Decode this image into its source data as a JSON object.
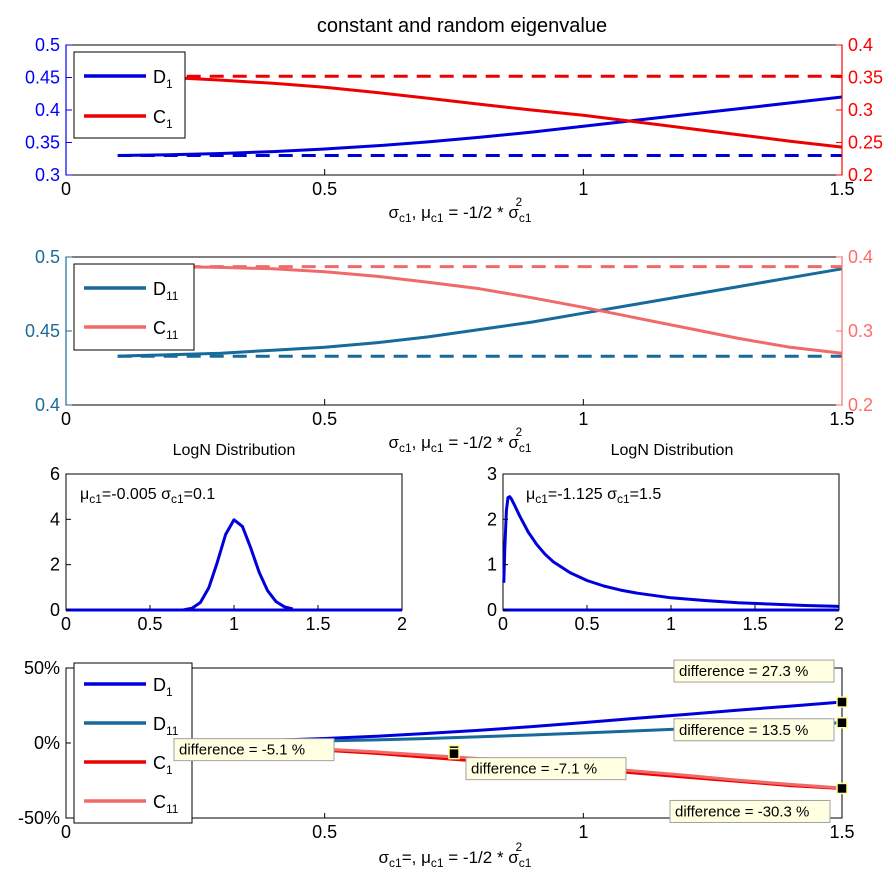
{
  "title": "constant and random eigenvalue",
  "chart_data": [
    {
      "type": "line",
      "id": "p1",
      "xlim": [
        0,
        1.5
      ],
      "xticks": [
        0,
        0.5,
        1,
        1.5
      ],
      "xtick_labels": [
        "0",
        "0.5",
        "1",
        "1.5"
      ],
      "ylim_left": [
        0.3,
        0.5
      ],
      "yticks_left": [
        "0.3",
        "0.35",
        "0.4",
        "0.45",
        "0.5"
      ],
      "ylim_right": [
        0.2,
        0.4
      ],
      "yticks_right": [
        "0.2",
        "0.25",
        "0.3",
        "0.35",
        "0.4"
      ],
      "left_axis_color": "#0000ff",
      "right_axis_color": "#ff0000",
      "xlabel": "σc1, μc1 = -1/2 * σc1²",
      "legend_position": "top-left",
      "series": [
        {
          "name": "D1",
          "axis": "left",
          "color": "#0000dd",
          "dash": false,
          "x": [
            0.1,
            0.2,
            0.3,
            0.4,
            0.5,
            0.6,
            0.7,
            0.8,
            0.9,
            1.0,
            1.1,
            1.2,
            1.3,
            1.4,
            1.5
          ],
          "y": [
            0.33,
            0.331,
            0.333,
            0.336,
            0.34,
            0.345,
            0.351,
            0.358,
            0.366,
            0.375,
            0.384,
            0.393,
            0.402,
            0.411,
            0.42
          ]
        },
        {
          "name": "C1",
          "axis": "right",
          "color": "#ee0000",
          "dash": false,
          "x": [
            0.1,
            0.2,
            0.3,
            0.4,
            0.5,
            0.6,
            0.7,
            0.8,
            0.9,
            1.0,
            1.1,
            1.2,
            1.3,
            1.4,
            1.5
          ],
          "y": [
            0.352,
            0.35,
            0.346,
            0.341,
            0.335,
            0.327,
            0.318,
            0.309,
            0.3,
            0.292,
            0.282,
            0.272,
            0.262,
            0.252,
            0.243
          ]
        },
        {
          "name": "",
          "axis": "left",
          "color": "#0000dd",
          "dash": true,
          "x": [
            0.1,
            1.5
          ],
          "y": [
            0.33,
            0.33
          ]
        },
        {
          "name": "",
          "axis": "right",
          "color": "#ee0000",
          "dash": true,
          "x": [
            0.1,
            1.5
          ],
          "y": [
            0.352,
            0.352
          ]
        }
      ]
    },
    {
      "type": "line",
      "id": "p2",
      "xlim": [
        0,
        1.5
      ],
      "xticks": [
        0,
        0.5,
        1,
        1.5
      ],
      "xtick_labels": [
        "0",
        "0.5",
        "1",
        "1.5"
      ],
      "ylim_left": [
        0.4,
        0.5
      ],
      "yticks_left": [
        "0.4",
        "0.45",
        "0.5"
      ],
      "ylim_right": [
        0.2,
        0.4
      ],
      "yticks_right": [
        "0.2",
        "0.3",
        "0.4"
      ],
      "left_axis_color": "#1a6b99",
      "right_axis_color": "#ff6b6b",
      "xlabel": "σc1, μc1 = -1/2 * σc1²",
      "legend_position": "top-left",
      "series": [
        {
          "name": "D11",
          "axis": "left",
          "color": "#176a99",
          "dash": false,
          "x": [
            0.1,
            0.2,
            0.3,
            0.4,
            0.5,
            0.6,
            0.7,
            0.8,
            0.9,
            1.0,
            1.1,
            1.2,
            1.3,
            1.4,
            1.5
          ],
          "y": [
            0.433,
            0.434,
            0.435,
            0.437,
            0.439,
            0.442,
            0.446,
            0.451,
            0.456,
            0.462,
            0.468,
            0.474,
            0.48,
            0.486,
            0.492
          ]
        },
        {
          "name": "C11",
          "axis": "right",
          "color": "#f06a6a",
          "dash": false,
          "x": [
            0.1,
            0.2,
            0.3,
            0.4,
            0.5,
            0.6,
            0.7,
            0.8,
            0.9,
            1.0,
            1.1,
            1.2,
            1.3,
            1.4,
            1.5
          ],
          "y": [
            0.387,
            0.387,
            0.386,
            0.384,
            0.38,
            0.374,
            0.366,
            0.357,
            0.345,
            0.332,
            0.318,
            0.304,
            0.29,
            0.278,
            0.27
          ]
        },
        {
          "name": "",
          "axis": "left",
          "color": "#176a99",
          "dash": true,
          "x": [
            0.1,
            1.5
          ],
          "y": [
            0.433,
            0.433
          ]
        },
        {
          "name": "",
          "axis": "right",
          "color": "#f06a6a",
          "dash": true,
          "x": [
            0.1,
            1.5
          ],
          "y": [
            0.387,
            0.387
          ]
        }
      ]
    },
    {
      "type": "line",
      "id": "p3",
      "title": "LogN Distribution",
      "annotation": "μc1=-0.005 σc1=0.1",
      "xlim": [
        0,
        2
      ],
      "xtick_labels": [
        "0",
        "0.5",
        "1",
        "1.5",
        "2"
      ],
      "ylim": [
        0,
        6
      ],
      "ytick_labels": [
        "0",
        "2",
        "4",
        "6"
      ],
      "series": [
        {
          "name": "",
          "color": "#0000dd",
          "x": [
            0.7,
            0.75,
            0.8,
            0.85,
            0.9,
            0.95,
            1.0,
            1.05,
            1.1,
            1.15,
            1.2,
            1.25,
            1.3,
            1.35
          ],
          "y": [
            0.01,
            0.08,
            0.33,
            0.98,
            2.09,
            3.33,
            3.98,
            3.69,
            2.73,
            1.66,
            0.85,
            0.37,
            0.14,
            0.05
          ]
        }
      ]
    },
    {
      "type": "line",
      "id": "p4",
      "title": "LogN Distribution",
      "annotation": "μc1=-1.125 σc1=1.5",
      "xlim": [
        0,
        2
      ],
      "xtick_labels": [
        "0",
        "0.5",
        "1",
        "1.5",
        "2"
      ],
      "ylim": [
        0,
        3
      ],
      "ytick_labels": [
        "0",
        "1",
        "2",
        "3"
      ],
      "series": [
        {
          "name": "",
          "color": "#0000dd",
          "x": [
            0.005,
            0.01,
            0.02,
            0.03,
            0.04,
            0.05,
            0.07,
            0.1,
            0.15,
            0.2,
            0.25,
            0.3,
            0.4,
            0.5,
            0.6,
            0.7,
            0.8,
            1.0,
            1.2,
            1.4,
            1.6,
            1.8,
            2.0
          ],
          "y": [
            0.6,
            1.3,
            2.2,
            2.48,
            2.5,
            2.45,
            2.3,
            2.07,
            1.72,
            1.45,
            1.23,
            1.06,
            0.82,
            0.65,
            0.53,
            0.44,
            0.37,
            0.27,
            0.21,
            0.16,
            0.13,
            0.1,
            0.08
          ]
        }
      ]
    },
    {
      "type": "line",
      "id": "p5",
      "xlim": [
        0,
        1.5
      ],
      "xtick_labels": [
        "0",
        "0.5",
        "1",
        "1.5"
      ],
      "ylim": [
        -50,
        50
      ],
      "ytick_labels": [
        "-50%",
        "0%",
        "50%"
      ],
      "xlabel": "σc1=, μc1 = -1/2 * σc1²",
      "legend_position": "top-left",
      "series": [
        {
          "name": "D1",
          "color": "#0000dd",
          "x": [
            0.1,
            0.2,
            0.3,
            0.4,
            0.5,
            0.6,
            0.7,
            0.8,
            0.9,
            1.0,
            1.1,
            1.2,
            1.3,
            1.4,
            1.5
          ],
          "y": [
            0,
            0.3,
            0.9,
            1.8,
            3.0,
            4.5,
            6.4,
            8.5,
            10.9,
            13.6,
            16.4,
            19.1,
            21.9,
            24.6,
            27.3
          ]
        },
        {
          "name": "D11",
          "color": "#176a99",
          "x": [
            0.1,
            0.2,
            0.3,
            0.4,
            0.5,
            0.6,
            0.7,
            0.8,
            0.9,
            1.0,
            1.1,
            1.2,
            1.3,
            1.4,
            1.5
          ],
          "y": [
            0,
            0.2,
            0.5,
            0.9,
            1.4,
            2.1,
            3.0,
            4.2,
            5.3,
            6.7,
            8.1,
            9.5,
            10.8,
            12.2,
            13.5
          ]
        },
        {
          "name": "C1",
          "color": "#ee0000",
          "x": [
            0.1,
            0.2,
            0.3,
            0.4,
            0.5,
            0.6,
            0.7,
            0.8,
            0.9,
            1.0,
            1.1,
            1.2,
            1.3,
            1.4,
            1.5
          ],
          "y": [
            0,
            -0.6,
            -1.7,
            -3.1,
            -4.8,
            -6.9,
            -9.6,
            -12.2,
            -14.8,
            -17.2,
            -20.0,
            -22.8,
            -25.6,
            -28.4,
            -30.3
          ]
        },
        {
          "name": "C11",
          "color": "#f06a6a",
          "x": [
            0.1,
            0.2,
            0.3,
            0.4,
            0.5,
            0.6,
            0.7,
            0.8,
            0.9,
            1.0,
            1.1,
            1.2,
            1.3,
            1.4,
            1.5
          ],
          "y": [
            0,
            -0.5,
            -1.4,
            -2.6,
            -4.1,
            -5.9,
            -8.2,
            -10.4,
            -13.0,
            -15.7,
            -18.7,
            -21.6,
            -24.8,
            -27.6,
            -30.0
          ]
        }
      ],
      "datatips": [
        {
          "text": "difference = 27.3 %",
          "x": 1.5,
          "y": 27.3
        },
        {
          "text": "difference = -5.1 %",
          "x": 0.75,
          "y": -5.1
        },
        {
          "text": "difference = 13.5 %",
          "x": 1.5,
          "y": 13.5
        },
        {
          "text": "difference = -7.1 %",
          "x": 0.75,
          "y": -7.1
        },
        {
          "text": "difference = -30.3 %",
          "x": 1.5,
          "y": -30.3
        }
      ]
    }
  ]
}
